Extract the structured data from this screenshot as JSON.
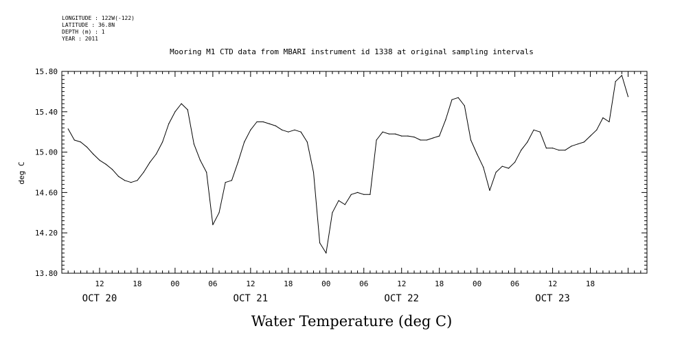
{
  "header_info": [
    "LONGITUDE : 122W(-122)",
    "LATITUDE : 36.8N",
    "DEPTH (m) : 1",
    "YEAR : 2011"
  ],
  "chart_data": {
    "type": "line",
    "title": "Mooring M1 CTD data from MBARI instrument id 1338 at original sampling intervals",
    "xlabel": "Water Temperature (deg C)",
    "ylabel": "deg C",
    "ylim": [
      13.8,
      15.8
    ],
    "yticks": [
      "13.80",
      "14.20",
      "14.60",
      "15.00",
      "15.40",
      "15.80"
    ],
    "ytick_values": [
      13.8,
      14.2,
      14.6,
      15.0,
      15.4,
      15.8
    ],
    "xlim": [
      "2011-10-20 06:00",
      "2011-10-24 03:00"
    ],
    "xticks": [
      {
        "time": "2011-10-20 12:00",
        "label": "12"
      },
      {
        "time": "2011-10-20 18:00",
        "label": "18"
      },
      {
        "time": "2011-10-21 00:00",
        "label": "00"
      },
      {
        "time": "2011-10-21 06:00",
        "label": "06"
      },
      {
        "time": "2011-10-21 12:00",
        "label": "12"
      },
      {
        "time": "2011-10-21 18:00",
        "label": "18"
      },
      {
        "time": "2011-10-22 00:00",
        "label": "00"
      },
      {
        "time": "2011-10-22 06:00",
        "label": "06"
      },
      {
        "time": "2011-10-22 12:00",
        "label": "12"
      },
      {
        "time": "2011-10-22 18:00",
        "label": "18"
      },
      {
        "time": "2011-10-23 00:00",
        "label": "00"
      },
      {
        "time": "2011-10-23 06:00",
        "label": "06"
      },
      {
        "time": "2011-10-23 12:00",
        "label": "12"
      },
      {
        "time": "2011-10-23 18:00",
        "label": "18"
      }
    ],
    "day_labels": [
      {
        "time": "2011-10-20 12:00",
        "label": "OCT 20"
      },
      {
        "time": "2011-10-21 12:00",
        "label": "OCT 21"
      },
      {
        "time": "2011-10-22 12:00",
        "label": "OCT 22"
      },
      {
        "time": "2011-10-23 12:00",
        "label": "OCT 23"
      }
    ],
    "grid": false,
    "series": [
      {
        "color": "#000000",
        "x": [
          "2011-10-20 07:00",
          "2011-10-20 08:00",
          "2011-10-20 09:00",
          "2011-10-20 10:00",
          "2011-10-20 11:00",
          "2011-10-20 12:00",
          "2011-10-20 13:00",
          "2011-10-20 14:00",
          "2011-10-20 15:00",
          "2011-10-20 16:00",
          "2011-10-20 17:00",
          "2011-10-20 18:00",
          "2011-10-20 19:00",
          "2011-10-20 20:00",
          "2011-10-20 21:00",
          "2011-10-20 22:00",
          "2011-10-20 23:00",
          "2011-10-21 00:00",
          "2011-10-21 01:00",
          "2011-10-21 02:00",
          "2011-10-21 03:00",
          "2011-10-21 04:00",
          "2011-10-21 05:00",
          "2011-10-21 06:00",
          "2011-10-21 07:00",
          "2011-10-21 08:00",
          "2011-10-21 09:00",
          "2011-10-21 10:00",
          "2011-10-21 11:00",
          "2011-10-21 12:00",
          "2011-10-21 13:00",
          "2011-10-21 14:00",
          "2011-10-21 15:00",
          "2011-10-21 16:00",
          "2011-10-21 17:00",
          "2011-10-21 18:00",
          "2011-10-21 19:00",
          "2011-10-21 20:00",
          "2011-10-21 21:00",
          "2011-10-21 22:00",
          "2011-10-21 23:00",
          "2011-10-22 00:00",
          "2011-10-22 01:00",
          "2011-10-22 02:00",
          "2011-10-22 03:00",
          "2011-10-22 04:00",
          "2011-10-22 05:00",
          "2011-10-22 06:00",
          "2011-10-22 07:00",
          "2011-10-22 08:00",
          "2011-10-22 09:00",
          "2011-10-22 10:00",
          "2011-10-22 11:00",
          "2011-10-22 12:00",
          "2011-10-22 13:00",
          "2011-10-22 14:00",
          "2011-10-22 15:00",
          "2011-10-22 16:00",
          "2011-10-22 17:00",
          "2011-10-22 18:00",
          "2011-10-22 19:00",
          "2011-10-22 20:00",
          "2011-10-22 21:00",
          "2011-10-22 22:00",
          "2011-10-22 23:00",
          "2011-10-23 00:00",
          "2011-10-23 01:00",
          "2011-10-23 02:00",
          "2011-10-23 03:00",
          "2011-10-23 04:00",
          "2011-10-23 05:00",
          "2011-10-23 06:00",
          "2011-10-23 07:00",
          "2011-10-23 08:00",
          "2011-10-23 09:00",
          "2011-10-23 10:00",
          "2011-10-23 11:00",
          "2011-10-23 12:00",
          "2011-10-23 13:00",
          "2011-10-23 14:00",
          "2011-10-23 15:00",
          "2011-10-23 16:00",
          "2011-10-23 17:00",
          "2011-10-23 18:00",
          "2011-10-23 19:00",
          "2011-10-23 20:00",
          "2011-10-23 21:00",
          "2011-10-23 22:00",
          "2011-10-23 23:00",
          "2011-10-24 00:00"
        ],
        "y": [
          15.23,
          15.12,
          15.1,
          15.05,
          14.98,
          14.92,
          14.88,
          14.83,
          14.76,
          14.72,
          14.7,
          14.72,
          14.8,
          14.9,
          14.98,
          15.1,
          15.28,
          15.4,
          15.48,
          15.42,
          15.08,
          14.92,
          14.8,
          14.28,
          14.4,
          14.7,
          14.72,
          14.9,
          15.1,
          15.22,
          15.3,
          15.3,
          15.28,
          15.26,
          15.22,
          15.2,
          15.22,
          15.2,
          15.1,
          14.8,
          14.1,
          14.0,
          14.4,
          14.52,
          14.48,
          14.58,
          14.6,
          14.58,
          14.58,
          15.12,
          15.2,
          15.18,
          15.18,
          15.16,
          15.16,
          15.15,
          15.12,
          15.12,
          15.14,
          15.16,
          15.32,
          15.52,
          15.54,
          15.46,
          15.12,
          14.98,
          14.85,
          14.62,
          14.8,
          14.86,
          14.84,
          14.9,
          15.02,
          15.1,
          15.22,
          15.2,
          15.04,
          15.04,
          15.02,
          15.02,
          15.06,
          15.08,
          15.1,
          15.16,
          15.22,
          15.34,
          15.3,
          15.7,
          15.76,
          15.55
        ]
      }
    ]
  }
}
